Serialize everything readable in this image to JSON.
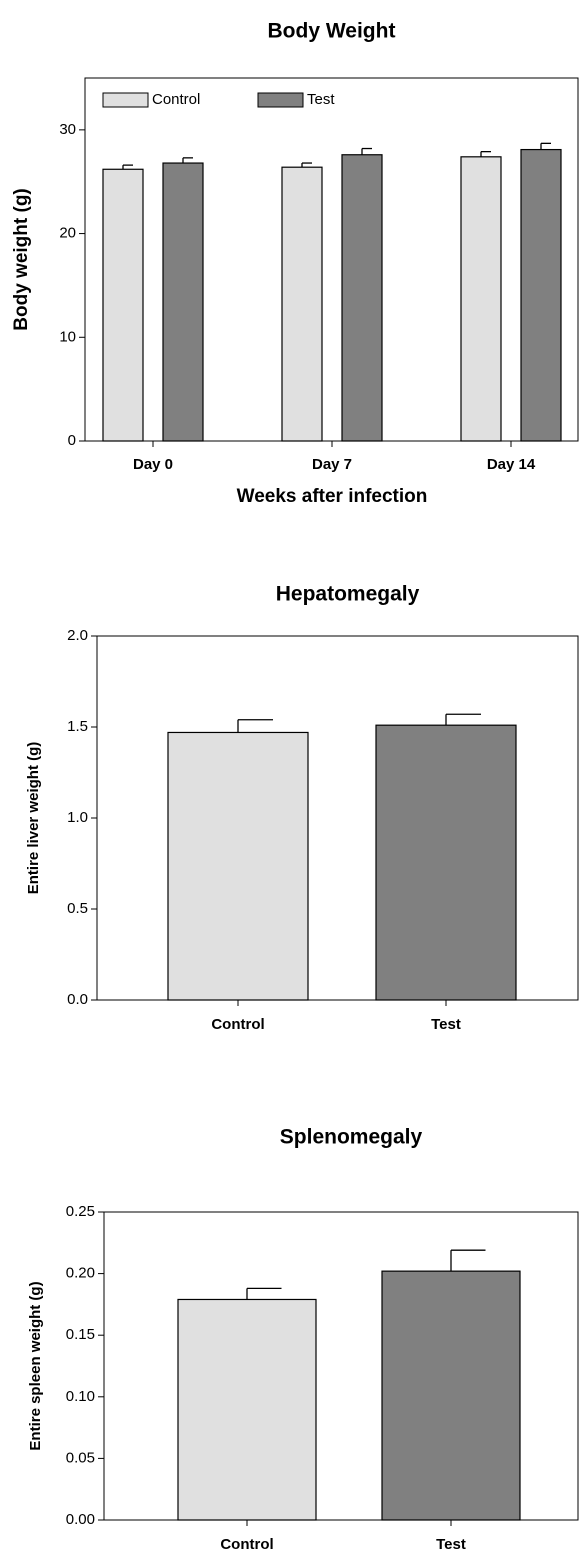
{
  "chart_data": [
    {
      "type": "bar",
      "title": "Body Weight",
      "x_label": "Weeks after infection",
      "y_label": "Body weight (g)",
      "categories": [
        "Day 0",
        "Day 7",
        "Day 14"
      ],
      "series": [
        {
          "name": "Control",
          "color": "#e0e0e0",
          "values": [
            26.2,
            26.4,
            27.4
          ],
          "errors": [
            0.4,
            0.4,
            0.5
          ]
        },
        {
          "name": "Test",
          "color": "#808080",
          "values": [
            26.8,
            27.6,
            28.1
          ],
          "errors": [
            0.5,
            0.6,
            0.6
          ]
        }
      ],
      "ylim": [
        0,
        35
      ],
      "yticks": [
        0,
        10,
        20,
        30
      ],
      "legend": "top-left"
    },
    {
      "type": "bar",
      "title": "Hepatomegaly",
      "y_label": "Entire liver weight (g)",
      "categories": [
        "Control",
        "Test"
      ],
      "values": [
        1.47,
        1.51
      ],
      "errors": [
        0.07,
        0.06
      ],
      "colors": [
        "#e0e0e0",
        "#808080"
      ],
      "ylim": [
        0,
        2
      ],
      "yticks": [
        {
          "value": 0,
          "label": "0.0"
        },
        0.5,
        {
          "value": 1,
          "label": "1.0"
        },
        1.5,
        {
          "value": 2,
          "label": "2.0"
        }
      ]
    },
    {
      "type": "bar",
      "title": "Splenomegaly",
      "y_label": "Entire spleen weight (g)",
      "categories": [
        "Control",
        "Test"
      ],
      "values": [
        0.179,
        0.202
      ],
      "errors": [
        0.009,
        0.017
      ],
      "colors": [
        "#e0e0e0",
        "#808080"
      ],
      "ylim": [
        0,
        0.25
      ],
      "yticks": [
        {
          "value": 0,
          "label": "0.00"
        },
        0.05,
        {
          "value": 0.1,
          "label": "0.10"
        },
        0.15,
        {
          "value": 0.2,
          "label": "0.20"
        },
        0.25
      ]
    }
  ]
}
